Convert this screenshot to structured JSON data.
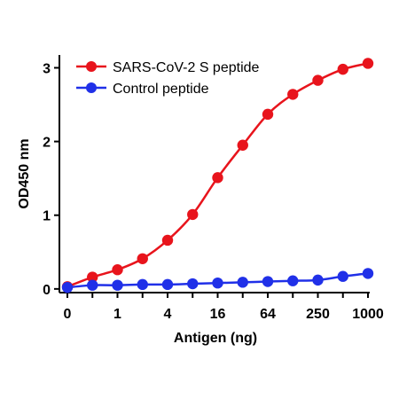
{
  "chart_data": {
    "type": "line",
    "x_tick_labels": [
      "0",
      "1",
      "4",
      "16",
      "64",
      "250",
      "1000"
    ],
    "x_tick_indices": [
      0,
      2,
      4,
      6,
      8,
      10,
      12
    ],
    "x_index": [
      0,
      1,
      2,
      3,
      4,
      5,
      6,
      7,
      8,
      9,
      10,
      11,
      12
    ],
    "series": [
      {
        "name": "SARS-CoV-2 S peptide",
        "color": "#e8141c",
        "values": [
          0.03,
          0.16,
          0.26,
          0.41,
          0.66,
          1.01,
          1.51,
          1.95,
          2.37,
          2.64,
          2.83,
          2.98,
          3.06
        ]
      },
      {
        "name": "Control peptide",
        "color": "#2030e8",
        "values": [
          0.02,
          0.05,
          0.05,
          0.06,
          0.06,
          0.07,
          0.08,
          0.09,
          0.1,
          0.11,
          0.12,
          0.17,
          0.21
        ]
      }
    ],
    "xlabel": "Antigen (ng)",
    "ylabel": "OD450 nm",
    "yticks": [
      0,
      1,
      2,
      3
    ],
    "ylim": [
      -0.05,
      3.15
    ],
    "legend_position": "top-left",
    "grid": false
  }
}
